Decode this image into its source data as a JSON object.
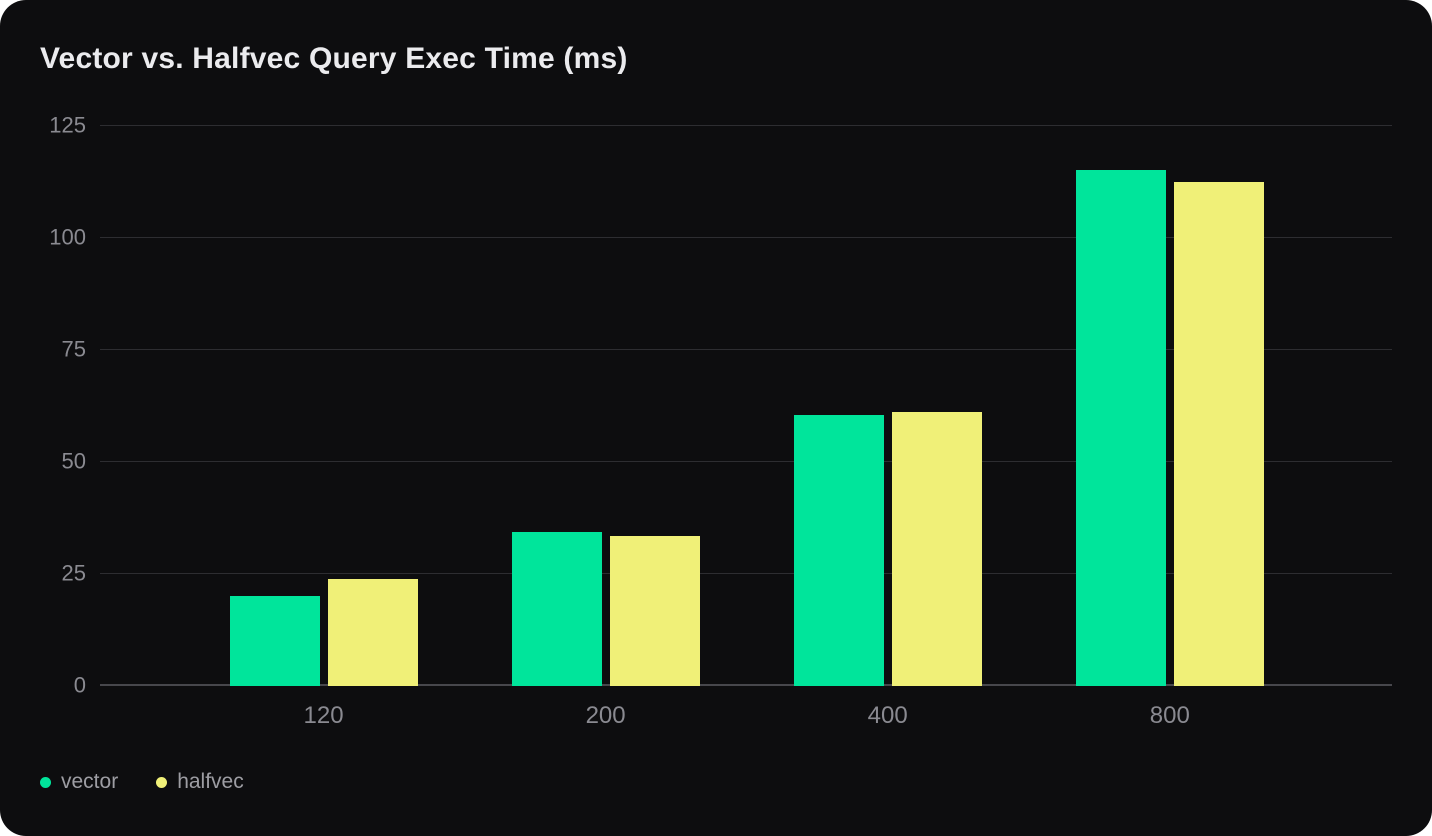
{
  "colors": {
    "page_background": "#ffffff",
    "card_background": "#0d0d0f",
    "title_text": "#ebebee",
    "axis_text": "#8a8a91",
    "legend_text": "#9d9da3",
    "gridline": "#2d2d31",
    "axis_line": "#47474c"
  },
  "chart_data": {
    "type": "bar",
    "title": "Vector vs. Halfvec Query Exec Time (ms)",
    "categories": [
      "120",
      "200",
      "400",
      "800"
    ],
    "series": [
      {
        "name": "vector",
        "color": "#00e59b",
        "values": [
          20.1,
          34.4,
          60.4,
          115.1
        ]
      },
      {
        "name": "halfvec",
        "color": "#f0f078",
        "values": [
          23.9,
          33.5,
          61.2,
          112.4
        ]
      }
    ],
    "xlabel": "",
    "ylabel": "",
    "ylim": [
      0,
      125
    ],
    "yticks": [
      0,
      25,
      50,
      75,
      100,
      125
    ],
    "grid": true,
    "legend_position": "bottom-left"
  }
}
